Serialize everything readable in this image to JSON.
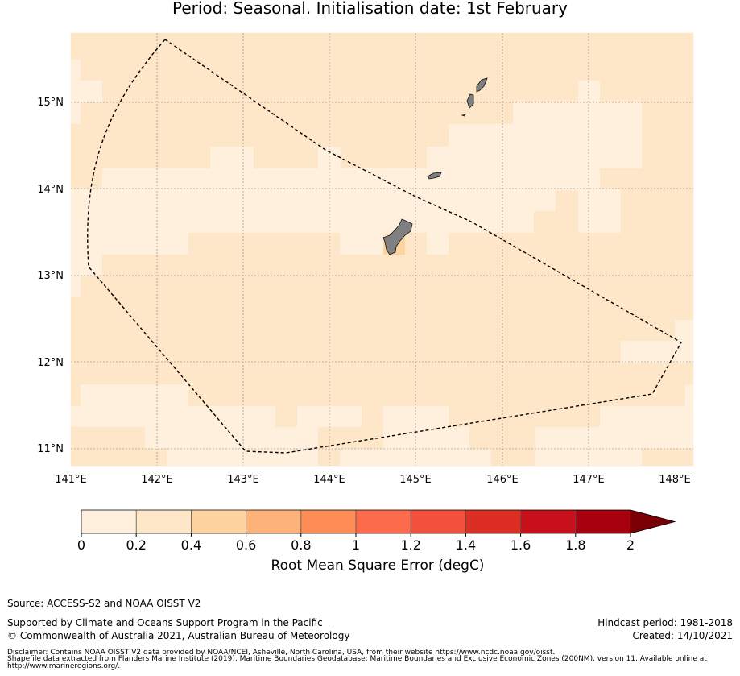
{
  "title": "Period: Seasonal. Initialisation date: 1st February",
  "map": {
    "lon_labels": [
      "141°E",
      "142°E",
      "143°E",
      "144°E",
      "145°E",
      "146°E",
      "147°E",
      "148°E"
    ],
    "lat_labels": [
      "15°N",
      "14°N",
      "13°N",
      "12°N",
      "11°N"
    ],
    "colors": {
      "very_low": "#fff0de",
      "low": "#fee6c8",
      "medium": "#fdd3a0",
      "land": "#808080",
      "boundary": "#000000"
    }
  },
  "colorbar": {
    "ticks": [
      "0",
      "0.2",
      "0.4",
      "0.6",
      "0.8",
      "1",
      "1.2",
      "1.4",
      "1.6",
      "1.8",
      "2"
    ],
    "colors": [
      "#fff0de",
      "#fee6c8",
      "#fdd3a0",
      "#fdb27a",
      "#fd8c56",
      "#fc6b4c",
      "#f4503e",
      "#dc2e23",
      "#c8101a",
      "#a8000e"
    ],
    "extend_color": "#7a0006",
    "label": "Root Mean Square Error (degC)"
  },
  "footer": {
    "source": "Source: ACCESS-S2 and NOAA OISST V2",
    "supported": "Supported by Climate and Oceans Support Program in the Pacific",
    "copyright": "© Commonwealth of Australia 2021, Australian Bureau of Meteorology",
    "hindcast": "Hindcast period: 1981-2018",
    "created": "Created: 14/10/2021",
    "disclaimer_1": "Disclaimer: Contains NOAA OISST V2 data provided by NOAA/NCEI, Asheville, North Carolina, USA, from their website https://www.ncdc.noaa.gov/oisst.",
    "disclaimer_2": "Shapefile data extracted from Flanders Marine Institute (2019), Maritime Boundaries Geodatabase: Maritime Boundaries and Exclusive Economic Zones (200NM), version 11. Available online at",
    "disclaimer_3": "http://www.marineregions.org/."
  }
}
